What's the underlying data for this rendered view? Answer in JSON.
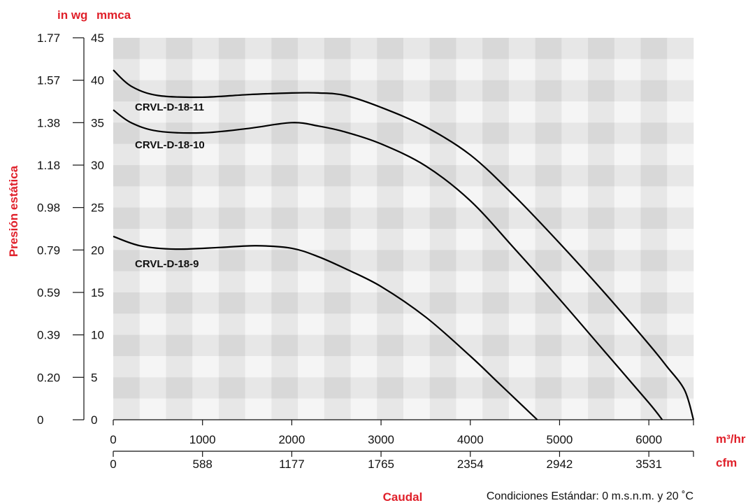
{
  "chart_data": {
    "type": "line",
    "units": {
      "left_outer": "in wg",
      "left_inner": "mmca",
      "bottom_primary": "m³/hr",
      "bottom_secondary": "cfm"
    },
    "ylabel": "Presión estática",
    "xlabel": "Caudal",
    "note": "Condiciones Estándar: 0 m.s.n.m. y 20 ˚C",
    "x_range": [
      0,
      6500
    ],
    "y_range": [
      0,
      45
    ],
    "y_ticks": [
      "0",
      "5",
      "10",
      "15",
      "20",
      "25",
      "30",
      "35",
      "40",
      "45"
    ],
    "y_ticks_inwg": [
      "0",
      "0.20",
      "0.39",
      "0.59",
      "0.79",
      "0.98",
      "1.18",
      "1.38",
      "1.57",
      "1.77"
    ],
    "x_ticks": [
      "0",
      "1000",
      "2000",
      "3000",
      "4000",
      "5000",
      "6000"
    ],
    "x_ticks_cfm": [
      "0",
      "588",
      "1177",
      "1765",
      "2354",
      "2942",
      "3531"
    ],
    "grid": true,
    "series": [
      {
        "name": "CRVL-D-18-11",
        "x": [
          0,
          200,
          500,
          1000,
          1500,
          2000,
          2300,
          2600,
          3000,
          3500,
          4000,
          4500,
          5000,
          5500,
          6000,
          6200,
          6400,
          6500
        ],
        "y": [
          41.2,
          39.3,
          38.2,
          38.0,
          38.3,
          38.5,
          38.5,
          38.2,
          36.8,
          34.5,
          31.2,
          26.3,
          20.8,
          15.0,
          8.9,
          6.3,
          3.5,
          0
        ]
      },
      {
        "name": "CRVL-D-18-10",
        "x": [
          0,
          200,
          500,
          1000,
          1500,
          2000,
          2300,
          2600,
          3000,
          3500,
          4000,
          4500,
          5000,
          5500,
          6000,
          6150
        ],
        "y": [
          36.5,
          35.0,
          34.0,
          33.8,
          34.3,
          35.0,
          34.6,
          33.9,
          32.5,
          29.9,
          25.8,
          20.1,
          14.2,
          8.1,
          2.0,
          0
        ]
      },
      {
        "name": "CRVL-D-18-9",
        "x": [
          0,
          300,
          700,
          1200,
          1600,
          2000,
          2300,
          2600,
          3000,
          3500,
          4000,
          4300,
          4500,
          4750
        ],
        "y": [
          21.6,
          20.5,
          20.1,
          20.3,
          20.5,
          20.2,
          19.2,
          17.8,
          15.7,
          12.1,
          7.5,
          4.5,
          2.5,
          0
        ]
      }
    ]
  }
}
